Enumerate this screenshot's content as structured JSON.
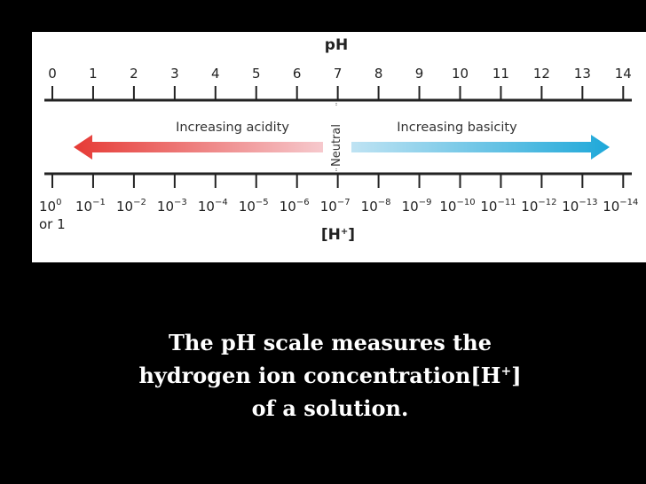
{
  "diagram": {
    "ph_title": "pH",
    "ph_ticks": [
      "0",
      "1",
      "2",
      "3",
      "4",
      "5",
      "6",
      "7",
      "8",
      "9",
      "10",
      "11",
      "12",
      "13",
      "14"
    ],
    "h_title": "[H",
    "h_title_sup": "+",
    "h_title_close": "]",
    "h_ticks_base": "10",
    "h_ticks_exponents": [
      "0",
      "−1",
      "−2",
      "−3",
      "−4",
      "−5",
      "−6",
      "−7",
      "−8",
      "−9",
      "−10",
      "−11",
      "−12",
      "−13",
      "−14"
    ],
    "first_alt_label": "or 1",
    "acidity_label": "Increasing acidity",
    "basicity_label": "Increasing basicity",
    "neutral_label": "Neutral",
    "colors": {
      "acid_arrow": "#e63a35",
      "acid_fade": "#f6c9cd",
      "base_fade": "#bfe3f3",
      "base_arrow": "#1ea8d9",
      "axis": "#222222"
    }
  },
  "caption": {
    "line1": "The pH scale measures the",
    "line2_text": "hydrogen ion concentration[H",
    "line2_sup": "+",
    "line2_close": "]",
    "line3": "of a solution."
  }
}
